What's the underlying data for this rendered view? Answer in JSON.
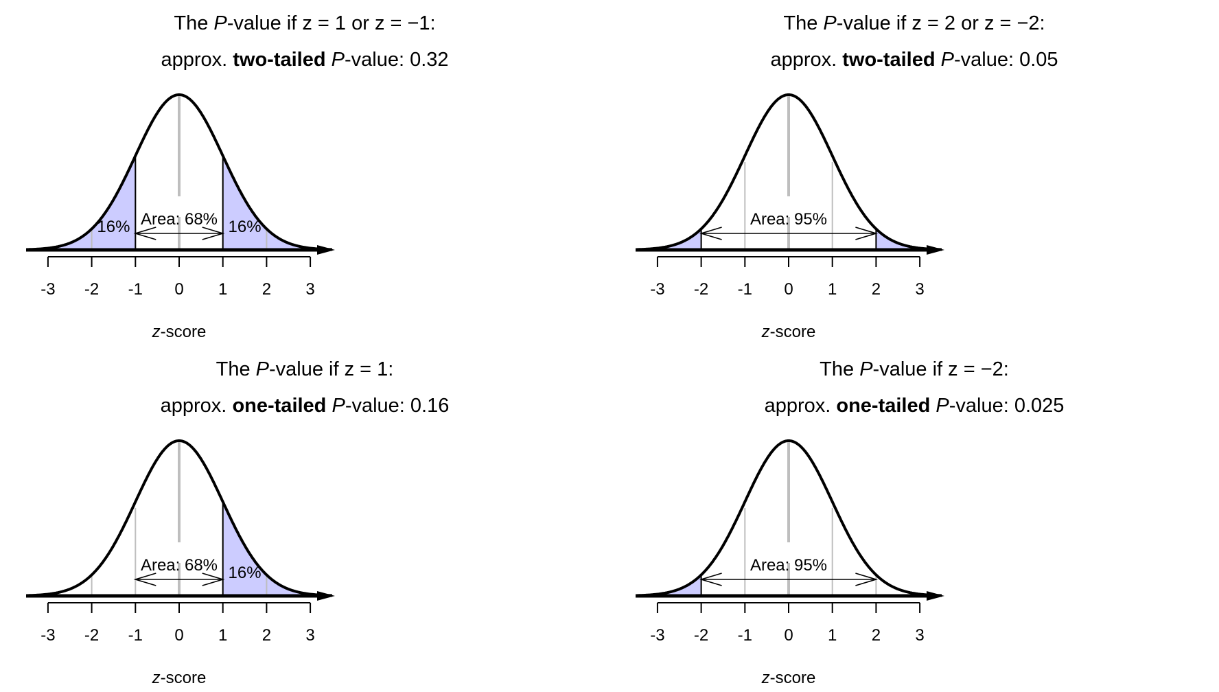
{
  "colors": {
    "shade": "#ccccff",
    "curve": "#000000",
    "grid": "#bebebe"
  },
  "panels": [
    {
      "title_line1": {
        "pre": "The ",
        "P": "P",
        "mid": "-value if ",
        "rest": "z = 1 or z = −1:"
      },
      "title_line2": {
        "pre": "approx. ",
        "bold": "two-tailed",
        "P": "P",
        "post": "-value: 0.32"
      },
      "xlabel": {
        "z": "z",
        "rest": "-score"
      },
      "ticks": [
        "-3",
        "-2",
        "-1",
        "0",
        "1",
        "2",
        "3"
      ],
      "area_label": "Area: 68%",
      "tail_labels": [
        "16%",
        "16%"
      ]
    },
    {
      "title_line1": {
        "pre": "The ",
        "P": "P",
        "mid": "-value if ",
        "rest": "z = 2 or z = −2:"
      },
      "title_line2": {
        "pre": "approx. ",
        "bold": "two-tailed",
        "P": "P",
        "post": "-value: 0.05"
      },
      "xlabel": {
        "z": "z",
        "rest": "-score"
      },
      "ticks": [
        "-3",
        "-2",
        "-1",
        "0",
        "1",
        "2",
        "3"
      ],
      "area_label": "Area: 95%",
      "tail_labels": []
    },
    {
      "title_line1": {
        "pre": "The ",
        "P": "P",
        "mid": "-value if ",
        "rest": "z = 1:"
      },
      "title_line2": {
        "pre": "approx. ",
        "bold": "one-tailed",
        "P": "P",
        "post": "-value: 0.16"
      },
      "xlabel": {
        "z": "z",
        "rest": "-score"
      },
      "ticks": [
        "-3",
        "-2",
        "-1",
        "0",
        "1",
        "2",
        "3"
      ],
      "area_label": "Area: 68%",
      "tail_labels": [
        "16%"
      ]
    },
    {
      "title_line1": {
        "pre": "The ",
        "P": "P",
        "mid": "-value if ",
        "rest": "z = −2:"
      },
      "title_line2": {
        "pre": "approx. ",
        "bold": "one-tailed",
        "P": "P",
        "post": "-value: 0.025"
      },
      "xlabel": {
        "z": "z",
        "rest": "-score"
      },
      "ticks": [
        "-3",
        "-2",
        "-1",
        "0",
        "1",
        "2",
        "3"
      ],
      "area_label": "Area: 95%",
      "tail_labels": []
    }
  ],
  "chart_data": [
    {
      "type": "area",
      "title": "The P-value if z = 1 or z = −1: approx. two-tailed P-value: 0.32",
      "xlabel": "z-score",
      "ylabel": "",
      "x_ticks": [
        -3,
        -2,
        -1,
        0,
        1,
        2,
        3
      ],
      "xlim": [
        -3.5,
        3.5
      ],
      "distribution": "standard normal",
      "shaded_regions": [
        [
          -3.5,
          -1
        ],
        [
          1,
          3.5
        ]
      ],
      "arrow_range": [
        -1,
        1
      ],
      "annotations": [
        "Area: 68%",
        "16%",
        "16%"
      ],
      "p_value": 0.32
    },
    {
      "type": "area",
      "title": "The P-value if z = 2 or z = −2: approx. two-tailed P-value: 0.05",
      "xlabel": "z-score",
      "ylabel": "",
      "x_ticks": [
        -3,
        -2,
        -1,
        0,
        1,
        2,
        3
      ],
      "xlim": [
        -3.5,
        3.5
      ],
      "distribution": "standard normal",
      "shaded_regions": [
        [
          -3.5,
          -2
        ],
        [
          2,
          3.5
        ]
      ],
      "arrow_range": [
        -2,
        2
      ],
      "annotations": [
        "Area: 95%"
      ],
      "p_value": 0.05
    },
    {
      "type": "area",
      "title": "The P-value if z = 1: approx. one-tailed P-value: 0.16",
      "xlabel": "z-score",
      "ylabel": "",
      "x_ticks": [
        -3,
        -2,
        -1,
        0,
        1,
        2,
        3
      ],
      "xlim": [
        -3.5,
        3.5
      ],
      "distribution": "standard normal",
      "shaded_regions": [
        [
          1,
          3.5
        ]
      ],
      "arrow_range": [
        -1,
        1
      ],
      "annotations": [
        "Area: 68%",
        "16%"
      ],
      "p_value": 0.16
    },
    {
      "type": "area",
      "title": "The P-value if z = −2: approx. one-tailed P-value: 0.025",
      "xlabel": "z-score",
      "ylabel": "",
      "x_ticks": [
        -3,
        -2,
        -1,
        0,
        1,
        2,
        3
      ],
      "xlim": [
        -3.5,
        3.5
      ],
      "distribution": "standard normal",
      "shaded_regions": [
        [
          -3.5,
          -2
        ]
      ],
      "arrow_range": [
        -2,
        2
      ],
      "annotations": [
        "Area: 95%"
      ],
      "p_value": 0.025
    }
  ]
}
